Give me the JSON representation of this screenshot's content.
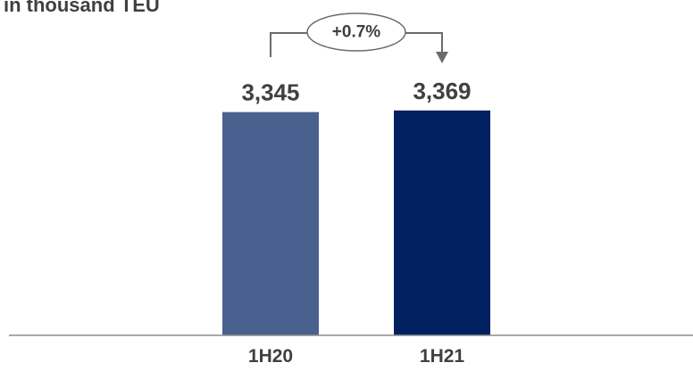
{
  "chart_data": {
    "type": "bar",
    "unit_label": "in thousand TEU",
    "categories": [
      "1H20",
      "1H21"
    ],
    "values": [
      3345,
      3369
    ],
    "value_labels": [
      "3,345",
      "3,369"
    ],
    "bar_colors": [
      "#4a6190",
      "#002060"
    ],
    "change_annotation": "+0.7%",
    "title": "",
    "xlabel": "",
    "ylabel": "",
    "ylim": [
      0,
      3500
    ],
    "grid": false,
    "legend": "none"
  }
}
